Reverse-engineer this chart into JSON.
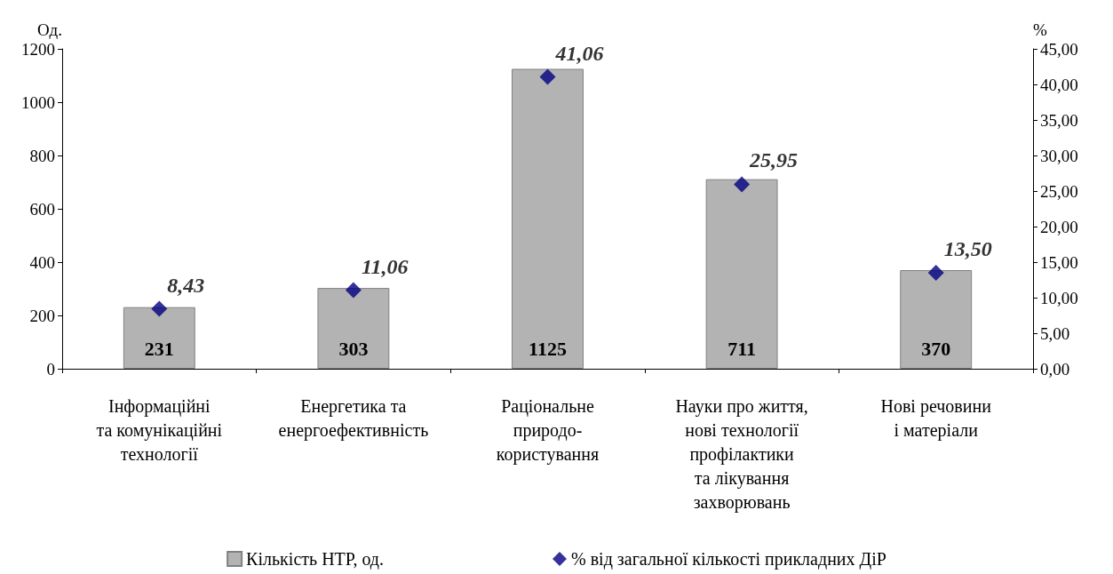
{
  "chart_data": {
    "type": "bar",
    "ylabel": "Од.",
    "y2label": "%",
    "categories": [
      "Інформаційні\nта комунікаційні\nтехнології",
      "Енергетика та\nенергоефективність",
      "Раціональне\nприродо-\nкористування",
      "Науки про життя,\nнові технології\nпрофілактики\nта лікування\nзахворювань",
      "Нові речовини\nі матеріали"
    ],
    "series": [
      {
        "name": "Кількість НТР, од.",
        "color": "#b3b3b3",
        "values": [
          231,
          303,
          1125,
          711,
          370
        ],
        "data_labels": true
      },
      {
        "name": "% від загальної кількості прикладних ДіР",
        "type": "scatter",
        "axis": "y2",
        "marker": "diamond",
        "color": "#000080",
        "x": [
          "Інформаційні\nта комунікаційні\nтехнології",
          "Енергетика та\nенергоефективність",
          "Раціональне\nприродо-\nкористування",
          "Науки про життя,\nнові технології\nпрофілактики\nта лікування\nзахворювань",
          "Нові речовини\nі матеріали"
        ],
        "values": [
          8.43,
          11.06,
          41.06,
          25.95,
          13.5
        ],
        "value_labels": [
          "8,43",
          "11,06",
          "41,06",
          "25,95",
          "13,50"
        ]
      }
    ],
    "ylim": [
      0,
      1200
    ],
    "yticks": [
      0,
      200,
      400,
      600,
      800,
      1000,
      1200
    ],
    "y2lim": [
      0,
      45
    ],
    "y2ticks": [
      {
        "value": 0,
        "label": "0,00"
      },
      {
        "value": 5,
        "label": "5,00"
      },
      {
        "value": 10,
        "label": "10,00"
      },
      {
        "value": 15,
        "label": "15,00"
      },
      {
        "value": 20,
        "label": "20,00"
      },
      {
        "value": 25,
        "label": "25,00"
      },
      {
        "value": 30,
        "label": "30,00"
      },
      {
        "value": 35,
        "label": "35,00"
      },
      {
        "value": 40,
        "label": "40,00"
      },
      {
        "value": 45,
        "label": "45,00"
      }
    ],
    "grid": false,
    "legend": "bottom"
  }
}
